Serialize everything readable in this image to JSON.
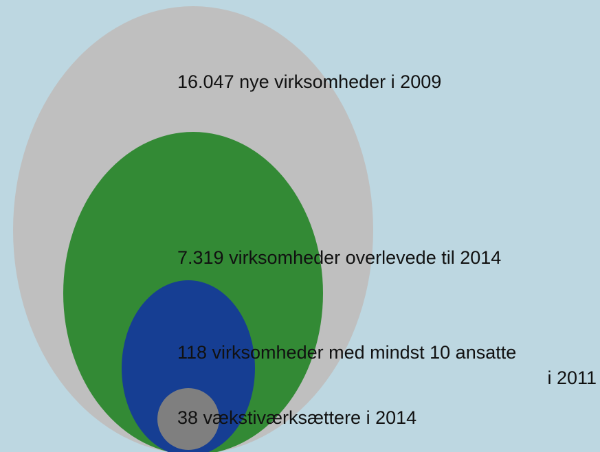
{
  "nodes": [
    {
      "label": "16.047 nye virksomheder  i 2009"
    },
    {
      "label": "7.319 virksomheder  overlevede  til 2014"
    },
    {
      "label": [
        "118 virksomheder  med mindst  10 ansatte",
        "i 2011"
      ]
    },
    {
      "label": "38 vækstiværksættere  i 2014"
    }
  ]
}
